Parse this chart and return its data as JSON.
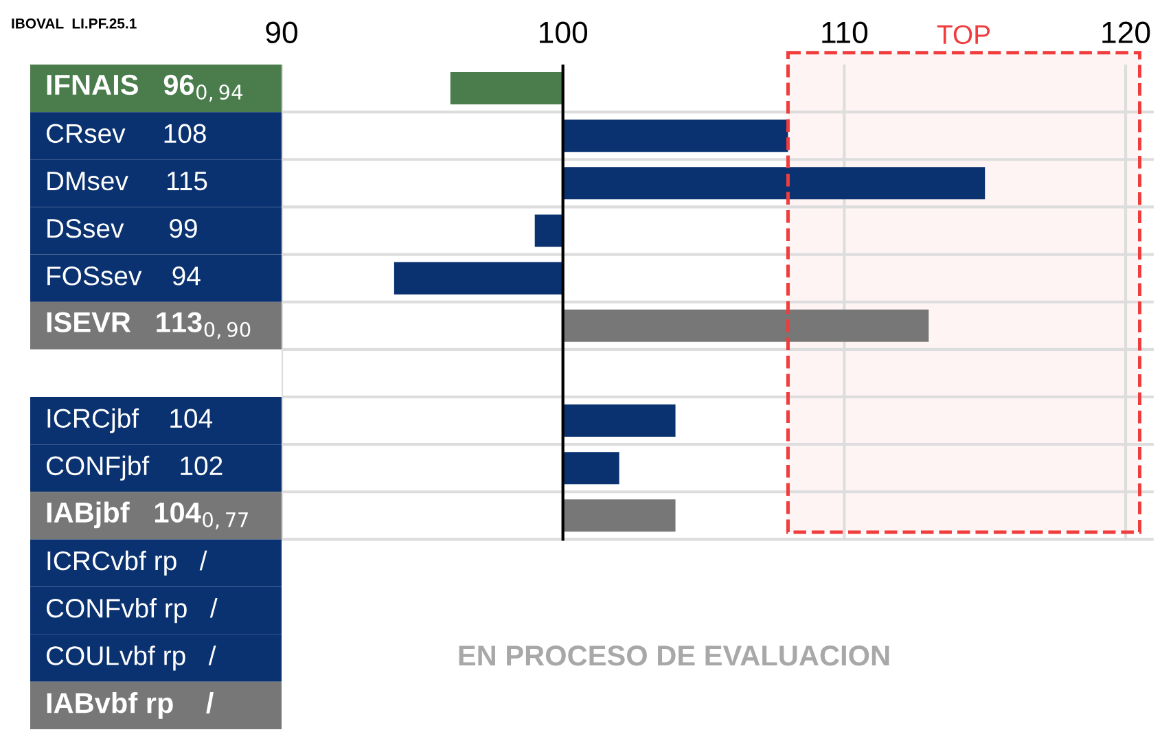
{
  "chart_data": {
    "type": "bar",
    "orientation": "horizontal",
    "title": "IBOVAL  LI.PF.25.1",
    "categories": [
      "IFNAIS   96$_{0,94}$",
      "CRsev     108",
      "DMsev     115",
      "DSsev      99",
      "FOSsev    94",
      "ISEVR   113$_{0,90}$",
      null,
      "ICRCjbf    104",
      "CONFjbf    102",
      "IABjbf   104$_{0,77}$",
      "ICRCvbf rp   /",
      "CONFvbf rp   /",
      "COULvbf rp   /",
      "IABvbf rp    /"
    ],
    "values": [
      -4,
      8,
      15,
      -1,
      -6,
      13,
      null,
      4,
      2,
      4,
      null,
      null,
      null,
      null
    ],
    "base": [
      100,
      100,
      100,
      100,
      100,
      100,
      null,
      100,
      100,
      100,
      null,
      null,
      null,
      null
    ],
    "colors": [
      "#4a7c4c",
      "#0a3270",
      "#0a3270",
      "#0a3270",
      "#0a3270",
      "#777777",
      null,
      "#0a3270",
      "#0a3270",
      "#777777",
      "#0a3270",
      "#0a3270",
      "#0a3270",
      "#777777"
    ],
    "xlim": [
      90,
      121
    ],
    "xticks": [
      90,
      100,
      110,
      120
    ],
    "grid": true,
    "ref_lines": [
      {
        "axis": "x",
        "value": 100,
        "color": "#000000"
      }
    ],
    "bands": [
      {
        "axis": "x",
        "from": 108,
        "to": 120.5,
        "label": "TOP",
        "color": "#f03c3c"
      }
    ],
    "annotations": [
      "EN PROCESO DE EVALUACION"
    ]
  }
}
